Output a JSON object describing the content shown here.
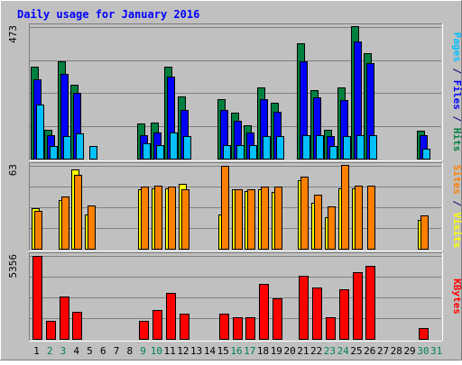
{
  "chart_data": {
    "type": "bar",
    "title": "Daily usage for January 2016",
    "categories": [
      "1",
      "2",
      "3",
      "4",
      "5",
      "6",
      "7",
      "8",
      "9",
      "10",
      "11",
      "12",
      "13",
      "14",
      "15",
      "16",
      "17",
      "18",
      "19",
      "20",
      "21",
      "22",
      "23",
      "24",
      "25",
      "26",
      "27",
      "28",
      "29",
      "30",
      "31"
    ],
    "weekend_days": [
      "2",
      "3",
      "9",
      "10",
      "16",
      "17",
      "23",
      "24",
      "30",
      "31"
    ],
    "panels": [
      {
        "id": "hits",
        "max_label": "473",
        "ylim": [
          0,
          473
        ],
        "axis_label_parts": [
          {
            "text": "Pages",
            "color": "#00c0ff"
          },
          {
            "text": " / ",
            "color": "#000080"
          },
          {
            "text": "Files",
            "color": "#0000ff"
          },
          {
            "text": " / ",
            "color": "#000080"
          },
          {
            "text": "Hits",
            "color": "#008040"
          }
        ],
        "series": [
          {
            "name": "Hits",
            "color": "#008040",
            "values": [
              330,
              105,
              350,
              265,
              0,
              0,
              0,
              0,
              125,
              130,
              330,
              225,
              0,
              0,
              215,
              165,
              120,
              255,
              200,
              0,
              415,
              245,
              105,
              255,
              475,
              380,
              0,
              0,
              0,
              100,
              0
            ]
          },
          {
            "name": "Files",
            "color": "#0000ff",
            "values": [
              285,
              85,
              305,
              235,
              0,
              0,
              0,
              0,
              85,
              95,
              295,
              175,
              0,
              0,
              175,
              135,
              95,
              215,
              170,
              0,
              350,
              220,
              80,
              210,
              420,
              345,
              0,
              0,
              0,
              85,
              0
            ]
          },
          {
            "name": "Pages",
            "color": "#00c0ff",
            "values": [
              195,
              45,
              80,
              90,
              45,
              0,
              0,
              0,
              55,
              50,
              95,
              80,
              0,
              0,
              50,
              50,
              50,
              80,
              80,
              0,
              85,
              85,
              45,
              80,
              85,
              85,
              0,
              0,
              0,
              35,
              0
            ]
          }
        ]
      },
      {
        "id": "visits",
        "max_label": "63",
        "ylim": [
          0,
          63
        ],
        "axis_label_parts": [
          {
            "text": "Sites",
            "color": "#ff8000"
          },
          {
            "text": " / ",
            "color": "#000080"
          },
          {
            "text": "Visits",
            "color": "#ffff00"
          }
        ],
        "series": [
          {
            "name": "Visits",
            "color": "#ffff00",
            "values": [
              31,
              0,
              37,
              60,
              26,
              0,
              0,
              0,
              45,
              46,
              46,
              49,
              0,
              0,
              26,
              45,
              44,
              45,
              43,
              0,
              52,
              35,
              24,
              46,
              46,
              0,
              0,
              0,
              0,
              22,
              0
            ]
          },
          {
            "name": "Sites",
            "color": "#ff8000",
            "values": [
              29,
              0,
              40,
              56,
              33,
              0,
              0,
              0,
              47,
              48,
              47,
              45,
              0,
              0,
              63,
              45,
              45,
              47,
              47,
              0,
              55,
              41,
              32,
              64,
              48,
              48,
              0,
              0,
              0,
              25,
              0
            ]
          }
        ]
      },
      {
        "id": "kbytes",
        "max_label": "5356",
        "ylim": [
          0,
          5356
        ],
        "axis_label_parts": [
          {
            "text": "KBytes",
            "color": "#ff0000"
          }
        ],
        "series": [
          {
            "name": "KBytes",
            "color": "#ff0000",
            "values": [
              5356,
              1175,
              2735,
              1740,
              0,
              0,
              0,
              0,
              1155,
              1850,
              2950,
              1615,
              0,
              0,
              1645,
              1395,
              1385,
              3535,
              2605,
              0,
              4080,
              3320,
              1395,
              3195,
              4330,
              4720,
              0,
              0,
              0,
              685,
              0
            ]
          }
        ]
      }
    ]
  }
}
